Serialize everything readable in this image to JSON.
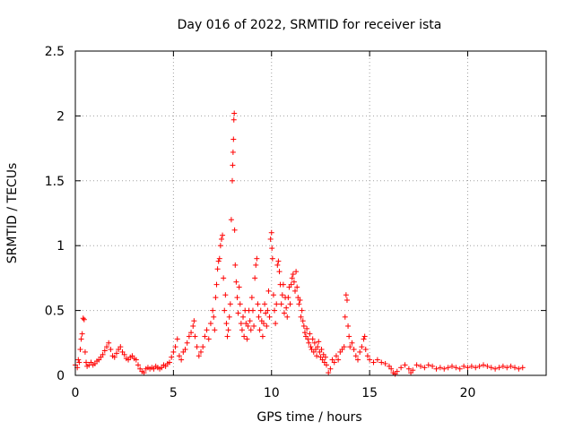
{
  "chart_data": {
    "type": "scatter",
    "title": "Day 016 of 2022, SRMTID for receiver ista",
    "xlabel": "GPS time / hours",
    "ylabel": "SRMTID / TECUs",
    "xlim": [
      0,
      24
    ],
    "ylim": [
      0,
      2.5
    ],
    "xticks": [
      0,
      5,
      10,
      15,
      20
    ],
    "xtick_labels": [
      "0",
      "5",
      "10",
      "15",
      "20"
    ],
    "yticks": [
      0,
      0.5,
      1,
      1.5,
      2,
      2.5
    ],
    "ytick_labels": [
      "0",
      "0.5",
      "1",
      "1.5",
      "2",
      "2.5"
    ],
    "grid": true,
    "marker": "+",
    "color": "#ff0000",
    "series": [
      {
        "name": "SRMTID",
        "points": [
          [
            0.0,
            0.08
          ],
          [
            0.1,
            0.06
          ],
          [
            0.15,
            0.12
          ],
          [
            0.2,
            0.1
          ],
          [
            0.25,
            0.2
          ],
          [
            0.3,
            0.28
          ],
          [
            0.35,
            0.32
          ],
          [
            0.4,
            0.44
          ],
          [
            0.45,
            0.43
          ],
          [
            0.5,
            0.18
          ],
          [
            0.55,
            0.1
          ],
          [
            0.6,
            0.07
          ],
          [
            0.7,
            0.08
          ],
          [
            0.8,
            0.1
          ],
          [
            0.9,
            0.08
          ],
          [
            1.0,
            0.09
          ],
          [
            1.1,
            0.11
          ],
          [
            1.2,
            0.12
          ],
          [
            1.3,
            0.14
          ],
          [
            1.4,
            0.16
          ],
          [
            1.5,
            0.19
          ],
          [
            1.6,
            0.22
          ],
          [
            1.7,
            0.25
          ],
          [
            1.8,
            0.2
          ],
          [
            1.9,
            0.15
          ],
          [
            2.0,
            0.14
          ],
          [
            2.1,
            0.17
          ],
          [
            2.2,
            0.2
          ],
          [
            2.3,
            0.22
          ],
          [
            2.4,
            0.18
          ],
          [
            2.5,
            0.16
          ],
          [
            2.6,
            0.13
          ],
          [
            2.7,
            0.12
          ],
          [
            2.8,
            0.14
          ],
          [
            2.9,
            0.15
          ],
          [
            3.0,
            0.13
          ],
          [
            3.1,
            0.12
          ],
          [
            3.2,
            0.08
          ],
          [
            3.3,
            0.05
          ],
          [
            3.4,
            0.03
          ],
          [
            3.5,
            0.02
          ],
          [
            3.6,
            0.05
          ],
          [
            3.7,
            0.06
          ],
          [
            3.8,
            0.05
          ],
          [
            3.9,
            0.06
          ],
          [
            4.0,
            0.05
          ],
          [
            4.1,
            0.07
          ],
          [
            4.2,
            0.06
          ],
          [
            4.3,
            0.05
          ],
          [
            4.4,
            0.06
          ],
          [
            4.5,
            0.08
          ],
          [
            4.6,
            0.07
          ],
          [
            4.7,
            0.09
          ],
          [
            4.8,
            0.1
          ],
          [
            4.9,
            0.14
          ],
          [
            5.0,
            0.18
          ],
          [
            5.1,
            0.22
          ],
          [
            5.2,
            0.28
          ],
          [
            5.3,
            0.15
          ],
          [
            5.4,
            0.12
          ],
          [
            5.5,
            0.18
          ],
          [
            5.6,
            0.2
          ],
          [
            5.7,
            0.25
          ],
          [
            5.8,
            0.3
          ],
          [
            5.9,
            0.33
          ],
          [
            6.0,
            0.38
          ],
          [
            6.05,
            0.42
          ],
          [
            6.1,
            0.3
          ],
          [
            6.2,
            0.22
          ],
          [
            6.3,
            0.15
          ],
          [
            6.4,
            0.18
          ],
          [
            6.5,
            0.22
          ],
          [
            6.6,
            0.3
          ],
          [
            6.7,
            0.35
          ],
          [
            6.8,
            0.28
          ],
          [
            6.9,
            0.4
          ],
          [
            7.0,
            0.5
          ],
          [
            7.05,
            0.45
          ],
          [
            7.1,
            0.35
          ],
          [
            7.15,
            0.6
          ],
          [
            7.2,
            0.7
          ],
          [
            7.25,
            0.82
          ],
          [
            7.3,
            0.88
          ],
          [
            7.35,
            0.9
          ],
          [
            7.4,
            1.0
          ],
          [
            7.45,
            1.05
          ],
          [
            7.5,
            1.08
          ],
          [
            7.55,
            0.75
          ],
          [
            7.6,
            0.5
          ],
          [
            7.65,
            0.62
          ],
          [
            7.7,
            0.4
          ],
          [
            7.75,
            0.3
          ],
          [
            7.8,
            0.35
          ],
          [
            7.85,
            0.45
          ],
          [
            7.9,
            0.55
          ],
          [
            7.95,
            1.2
          ],
          [
            8.0,
            1.5
          ],
          [
            8.02,
            1.62
          ],
          [
            8.04,
            1.72
          ],
          [
            8.06,
            1.82
          ],
          [
            8.08,
            1.97
          ],
          [
            8.1,
            2.02
          ],
          [
            8.12,
            1.12
          ],
          [
            8.15,
            0.85
          ],
          [
            8.2,
            0.72
          ],
          [
            8.25,
            0.6
          ],
          [
            8.3,
            0.48
          ],
          [
            8.35,
            0.68
          ],
          [
            8.4,
            0.55
          ],
          [
            8.45,
            0.4
          ],
          [
            8.5,
            0.35
          ],
          [
            8.55,
            0.45
          ],
          [
            8.6,
            0.3
          ],
          [
            8.65,
            0.5
          ],
          [
            8.7,
            0.4
          ],
          [
            8.75,
            0.28
          ],
          [
            8.8,
            0.38
          ],
          [
            8.85,
            0.5
          ],
          [
            8.9,
            0.42
          ],
          [
            8.95,
            0.35
          ],
          [
            9.0,
            0.6
          ],
          [
            9.05,
            0.5
          ],
          [
            9.1,
            0.38
          ],
          [
            9.15,
            0.75
          ],
          [
            9.2,
            0.85
          ],
          [
            9.25,
            0.9
          ],
          [
            9.3,
            0.55
          ],
          [
            9.35,
            0.45
          ],
          [
            9.4,
            0.35
          ],
          [
            9.45,
            0.5
          ],
          [
            9.5,
            0.42
          ],
          [
            9.55,
            0.3
          ],
          [
            9.6,
            0.4
          ],
          [
            9.65,
            0.55
          ],
          [
            9.7,
            0.48
          ],
          [
            9.75,
            0.38
          ],
          [
            9.8,
            0.5
          ],
          [
            9.85,
            0.65
          ],
          [
            9.9,
            0.45
          ],
          [
            9.95,
            1.05
          ],
          [
            10.0,
            1.1
          ],
          [
            10.02,
            0.98
          ],
          [
            10.05,
            0.9
          ],
          [
            10.1,
            0.62
          ],
          [
            10.15,
            0.5
          ],
          [
            10.2,
            0.4
          ],
          [
            10.25,
            0.55
          ],
          [
            10.3,
            0.85
          ],
          [
            10.35,
            0.88
          ],
          [
            10.4,
            0.8
          ],
          [
            10.45,
            0.7
          ],
          [
            10.5,
            0.55
          ],
          [
            10.55,
            0.62
          ],
          [
            10.6,
            0.7
          ],
          [
            10.65,
            0.48
          ],
          [
            10.7,
            0.6
          ],
          [
            10.75,
            0.52
          ],
          [
            10.8,
            0.45
          ],
          [
            10.85,
            0.6
          ],
          [
            10.9,
            0.68
          ],
          [
            10.95,
            0.55
          ],
          [
            11.0,
            0.7
          ],
          [
            11.05,
            0.75
          ],
          [
            11.1,
            0.78
          ],
          [
            11.15,
            0.72
          ],
          [
            11.2,
            0.65
          ],
          [
            11.25,
            0.8
          ],
          [
            11.3,
            0.68
          ],
          [
            11.35,
            0.6
          ],
          [
            11.4,
            0.55
          ],
          [
            11.45,
            0.58
          ],
          [
            11.5,
            0.45
          ],
          [
            11.55,
            0.5
          ],
          [
            11.6,
            0.42
          ],
          [
            11.65,
            0.38
          ],
          [
            11.7,
            0.33
          ],
          [
            11.75,
            0.3
          ],
          [
            11.8,
            0.36
          ],
          [
            11.85,
            0.28
          ],
          [
            11.9,
            0.25
          ],
          [
            11.95,
            0.32
          ],
          [
            12.0,
            0.22
          ],
          [
            12.05,
            0.2
          ],
          [
            12.1,
            0.28
          ],
          [
            12.15,
            0.18
          ],
          [
            12.2,
            0.25
          ],
          [
            12.25,
            0.2
          ],
          [
            12.3,
            0.15
          ],
          [
            12.35,
            0.22
          ],
          [
            12.4,
            0.26
          ],
          [
            12.45,
            0.18
          ],
          [
            12.5,
            0.14
          ],
          [
            12.55,
            0.2
          ],
          [
            12.6,
            0.12
          ],
          [
            12.65,
            0.16
          ],
          [
            12.7,
            0.1
          ],
          [
            12.75,
            0.14
          ],
          [
            12.8,
            0.08
          ],
          [
            12.9,
            0.02
          ],
          [
            13.0,
            0.05
          ],
          [
            13.1,
            0.12
          ],
          [
            13.2,
            0.1
          ],
          [
            13.3,
            0.15
          ],
          [
            13.4,
            0.12
          ],
          [
            13.5,
            0.18
          ],
          [
            13.6,
            0.2
          ],
          [
            13.7,
            0.22
          ],
          [
            13.75,
            0.45
          ],
          [
            13.8,
            0.62
          ],
          [
            13.85,
            0.58
          ],
          [
            13.9,
            0.38
          ],
          [
            13.95,
            0.3
          ],
          [
            14.0,
            0.22
          ],
          [
            14.1,
            0.25
          ],
          [
            14.2,
            0.2
          ],
          [
            14.3,
            0.15
          ],
          [
            14.4,
            0.12
          ],
          [
            14.5,
            0.18
          ],
          [
            14.6,
            0.22
          ],
          [
            14.7,
            0.28
          ],
          [
            14.75,
            0.3
          ],
          [
            14.8,
            0.2
          ],
          [
            14.9,
            0.15
          ],
          [
            15.0,
            0.12
          ],
          [
            15.2,
            0.1
          ],
          [
            15.4,
            0.12
          ],
          [
            15.6,
            0.1
          ],
          [
            15.8,
            0.09
          ],
          [
            16.0,
            0.07
          ],
          [
            16.1,
            0.05
          ],
          [
            16.2,
            0.02
          ],
          [
            16.3,
            0.01
          ],
          [
            16.4,
            0.03
          ],
          [
            16.6,
            0.06
          ],
          [
            16.8,
            0.08
          ],
          [
            17.0,
            0.05
          ],
          [
            17.1,
            0.02
          ],
          [
            17.2,
            0.04
          ],
          [
            17.4,
            0.08
          ],
          [
            17.6,
            0.07
          ],
          [
            17.8,
            0.06
          ],
          [
            18.0,
            0.08
          ],
          [
            18.2,
            0.07
          ],
          [
            18.4,
            0.05
          ],
          [
            18.6,
            0.06
          ],
          [
            18.8,
            0.05
          ],
          [
            19.0,
            0.06
          ],
          [
            19.2,
            0.07
          ],
          [
            19.4,
            0.06
          ],
          [
            19.6,
            0.05
          ],
          [
            19.8,
            0.07
          ],
          [
            20.0,
            0.06
          ],
          [
            20.2,
            0.07
          ],
          [
            20.4,
            0.06
          ],
          [
            20.6,
            0.07
          ],
          [
            20.8,
            0.08
          ],
          [
            21.0,
            0.07
          ],
          [
            21.2,
            0.06
          ],
          [
            21.4,
            0.05
          ],
          [
            21.6,
            0.06
          ],
          [
            21.8,
            0.07
          ],
          [
            22.0,
            0.06
          ],
          [
            22.2,
            0.07
          ],
          [
            22.4,
            0.06
          ],
          [
            22.6,
            0.05
          ],
          [
            22.8,
            0.06
          ]
        ]
      }
    ]
  }
}
